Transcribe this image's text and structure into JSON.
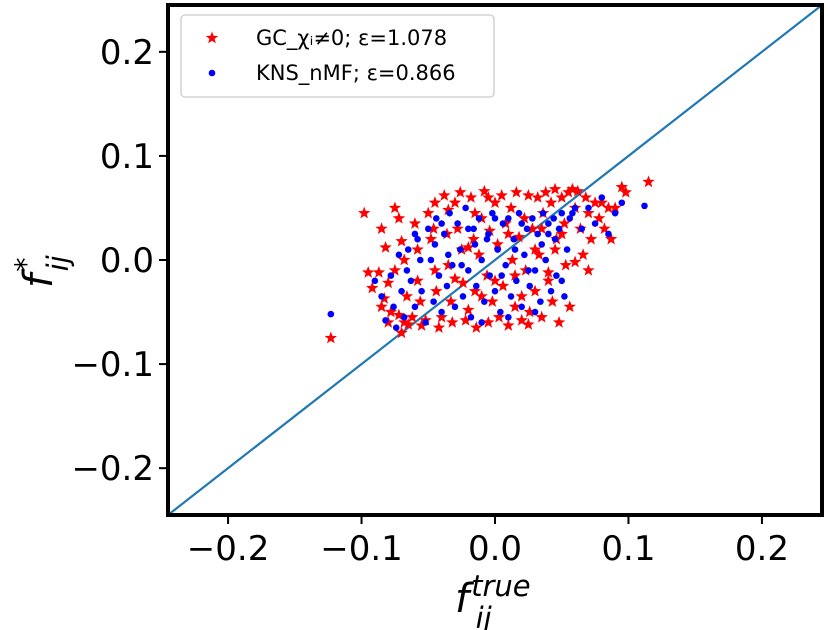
{
  "chart_data": {
    "type": "scatter",
    "xlabel": "f_ij^true",
    "ylabel": "f_ij^*",
    "xlim": [
      -0.245,
      0.245
    ],
    "ylim": [
      -0.245,
      0.245
    ],
    "x_ticks": [
      -0.2,
      -0.1,
      0.0,
      0.1,
      0.2
    ],
    "y_ticks": [
      -0.2,
      -0.1,
      0.0,
      0.1,
      0.2
    ],
    "x_tick_labels": [
      "−0.2",
      "−0.1",
      "0.0",
      "0.1",
      "0.2"
    ],
    "y_tick_labels": [
      "−0.2",
      "−0.1",
      "0.0",
      "0.1",
      "0.2"
    ],
    "reference_line": {
      "description": "y = x",
      "color": "#1f77b4"
    },
    "legend_position": "upper-left",
    "series": [
      {
        "name": "GC_χi≠0;ε=1.078",
        "legend_label": "GC_χᵢ≠0; ε=1.078",
        "marker": "star",
        "color": "#ff0000",
        "points": [
          [
            -0.123,
            -0.075
          ],
          [
            -0.095,
            -0.012
          ],
          [
            -0.092,
            -0.027
          ],
          [
            -0.087,
            -0.012
          ],
          [
            -0.085,
            -0.045
          ],
          [
            -0.083,
            -0.037
          ],
          [
            -0.08,
            -0.06
          ],
          [
            -0.098,
            0.045
          ],
          [
            -0.085,
            0.03
          ],
          [
            -0.082,
            0.012
          ],
          [
            -0.08,
            -0.022
          ],
          [
            -0.078,
            -0.05
          ],
          [
            -0.075,
            -0.01
          ],
          [
            -0.072,
            -0.053
          ],
          [
            -0.07,
            -0.07
          ],
          [
            -0.068,
            -0.06
          ],
          [
            -0.075,
            0.05
          ],
          [
            -0.072,
            0.04
          ],
          [
            -0.07,
            0.018
          ],
          [
            -0.068,
            0.0
          ],
          [
            -0.066,
            -0.035
          ],
          [
            -0.065,
            -0.062
          ],
          [
            -0.062,
            -0.055
          ],
          [
            -0.06,
            0.035
          ],
          [
            -0.058,
            0.01
          ],
          [
            -0.056,
            -0.04
          ],
          [
            -0.055,
            -0.063
          ],
          [
            -0.052,
            -0.058
          ],
          [
            -0.05,
            0.045
          ],
          [
            -0.048,
            0.02
          ],
          [
            -0.046,
            0.03
          ],
          [
            -0.045,
            -0.01
          ],
          [
            -0.044,
            -0.03
          ],
          [
            -0.042,
            -0.065
          ],
          [
            -0.04,
            -0.055
          ],
          [
            -0.038,
            0.062
          ],
          [
            -0.036,
            0.025
          ],
          [
            -0.035,
            -0.005
          ],
          [
            -0.033,
            -0.04
          ],
          [
            -0.032,
            -0.06
          ],
          [
            -0.03,
            0.055
          ],
          [
            -0.028,
            0.03
          ],
          [
            -0.026,
            0.065
          ],
          [
            -0.025,
            0.01
          ],
          [
            -0.024,
            -0.022
          ],
          [
            -0.022,
            -0.058
          ],
          [
            -0.02,
            -0.048
          ],
          [
            -0.018,
            0.06
          ],
          [
            -0.016,
            0.02
          ],
          [
            -0.015,
            -0.03
          ],
          [
            -0.014,
            -0.065
          ],
          [
            -0.012,
            0.005
          ],
          [
            -0.01,
            0.04
          ],
          [
            -0.008,
            0.066
          ],
          [
            -0.006,
            -0.015
          ],
          [
            -0.005,
            -0.06
          ],
          [
            -0.004,
            0.028
          ],
          [
            -0.002,
            -0.04
          ],
          [
            0.0,
            0.055
          ],
          [
            0.002,
            0.015
          ],
          [
            0.003,
            -0.055
          ],
          [
            0.005,
            0.062
          ],
          [
            0.006,
            -0.025
          ],
          [
            0.008,
            0.035
          ],
          [
            0.01,
            -0.063
          ],
          [
            0.012,
            0.05
          ],
          [
            0.013,
            0.0
          ],
          [
            0.015,
            -0.045
          ],
          [
            0.016,
            0.065
          ],
          [
            0.018,
            0.022
          ],
          [
            0.02,
            -0.058
          ],
          [
            0.022,
            0.04
          ],
          [
            0.023,
            -0.01
          ],
          [
            0.025,
            0.062
          ],
          [
            0.026,
            -0.05
          ],
          [
            0.028,
            0.03
          ],
          [
            0.03,
            -0.03
          ],
          [
            0.032,
            0.06
          ],
          [
            0.033,
            0.005
          ],
          [
            0.035,
            -0.055
          ],
          [
            0.036,
            0.045
          ],
          [
            0.038,
            0.065
          ],
          [
            0.04,
            -0.02
          ],
          [
            0.042,
            0.055
          ],
          [
            0.043,
            -0.04
          ],
          [
            0.045,
            0.068
          ],
          [
            0.046,
            0.02
          ],
          [
            0.048,
            -0.06
          ],
          [
            0.05,
            0.06
          ],
          [
            0.052,
            0.035
          ],
          [
            0.053,
            -0.005
          ],
          [
            0.055,
            0.065
          ],
          [
            0.056,
            -0.045
          ],
          [
            0.058,
            0.068
          ],
          [
            0.06,
            0.05
          ],
          [
            0.062,
            0.066
          ],
          [
            0.064,
            0.03
          ],
          [
            0.066,
            0.005
          ],
          [
            0.068,
            0.06
          ],
          [
            0.07,
            0.045
          ],
          [
            0.072,
            0.02
          ],
          [
            0.075,
            0.055
          ],
          [
            0.078,
            0.04
          ],
          [
            0.08,
            0.055
          ],
          [
            0.082,
            0.03
          ],
          [
            0.085,
            0.05
          ],
          [
            0.087,
            0.02
          ],
          [
            0.09,
            0.05
          ],
          [
            0.095,
            0.07
          ],
          [
            0.098,
            0.065
          ],
          [
            0.115,
            0.075
          ],
          [
            -0.035,
            0.048
          ],
          [
            -0.03,
            -0.018
          ],
          [
            -0.02,
            0.012
          ],
          [
            -0.01,
            -0.035
          ],
          [
            0.0,
            -0.02
          ],
          [
            0.01,
            0.025
          ],
          [
            0.02,
            -0.035
          ],
          [
            0.03,
            0.01
          ],
          [
            0.04,
            -0.012
          ],
          [
            0.05,
            0.025
          ],
          [
            -0.045,
            0.055
          ],
          [
            -0.015,
            0.045
          ],
          [
            0.015,
            -0.015
          ],
          [
            0.045,
            0.01
          ],
          [
            0.06,
            -0.002
          ],
          [
            0.07,
            -0.01
          ],
          [
            -0.058,
            -0.02
          ],
          [
            -0.005,
            0.06
          ],
          [
            0.025,
            -0.062
          ],
          [
            0.035,
            0.03
          ]
        ]
      },
      {
        "name": "KNS_nMF;ε=0.866",
        "legend_label": "KNS_nMF; ε=0.866",
        "marker": "circle",
        "color": "#0000ff",
        "points": [
          [
            -0.123,
            -0.052
          ],
          [
            -0.09,
            -0.02
          ],
          [
            -0.085,
            -0.035
          ],
          [
            -0.082,
            -0.058
          ],
          [
            -0.078,
            -0.015
          ],
          [
            -0.076,
            -0.045
          ],
          [
            -0.074,
            -0.065
          ],
          [
            -0.072,
            0.005
          ],
          [
            -0.07,
            -0.03
          ],
          [
            -0.068,
            -0.055
          ],
          [
            -0.065,
            0.01
          ],
          [
            -0.063,
            -0.02
          ],
          [
            -0.06,
            -0.045
          ],
          [
            -0.058,
            0.02
          ],
          [
            -0.055,
            -0.03
          ],
          [
            -0.052,
            -0.06
          ],
          [
            -0.05,
            0.03
          ],
          [
            -0.048,
            0.0
          ],
          [
            -0.046,
            -0.04
          ],
          [
            -0.044,
            0.04
          ],
          [
            -0.042,
            -0.015
          ],
          [
            -0.04,
            -0.05
          ],
          [
            -0.038,
            0.025
          ],
          [
            -0.036,
            -0.025
          ],
          [
            -0.034,
            0.045
          ],
          [
            -0.032,
            -0.005
          ],
          [
            -0.03,
            -0.045
          ],
          [
            -0.028,
            0.035
          ],
          [
            -0.026,
            0.01
          ],
          [
            -0.024,
            -0.035
          ],
          [
            -0.022,
            0.05
          ],
          [
            -0.02,
            -0.01
          ],
          [
            -0.018,
            -0.055
          ],
          [
            -0.016,
            0.03
          ],
          [
            -0.014,
            -0.025
          ],
          [
            -0.012,
            0.04
          ],
          [
            -0.01,
            0.0
          ],
          [
            -0.008,
            -0.04
          ],
          [
            -0.006,
            0.02
          ],
          [
            -0.004,
            -0.015
          ],
          [
            -0.002,
            0.045
          ],
          [
            0.0,
            -0.03
          ],
          [
            0.002,
            0.01
          ],
          [
            0.004,
            -0.05
          ],
          [
            0.006,
            0.035
          ],
          [
            0.008,
            -0.005
          ],
          [
            0.01,
            0.04
          ],
          [
            0.012,
            -0.035
          ],
          [
            0.014,
            0.02
          ],
          [
            0.016,
            -0.02
          ],
          [
            0.018,
            0.045
          ],
          [
            0.02,
            -0.045
          ],
          [
            0.022,
            0.005
          ],
          [
            0.024,
            0.03
          ],
          [
            0.026,
            -0.025
          ],
          [
            0.028,
            0.04
          ],
          [
            0.03,
            -0.01
          ],
          [
            0.032,
            0.025
          ],
          [
            0.034,
            -0.04
          ],
          [
            0.036,
            0.045
          ],
          [
            0.038,
            0.0
          ],
          [
            0.04,
            0.035
          ],
          [
            0.042,
            -0.03
          ],
          [
            0.044,
            0.04
          ],
          [
            0.046,
            -0.015
          ],
          [
            0.048,
            0.03
          ],
          [
            0.05,
            0.045
          ],
          [
            0.052,
            -0.035
          ],
          [
            0.054,
            0.01
          ],
          [
            0.056,
            0.04
          ],
          [
            0.058,
            0.045
          ],
          [
            0.06,
            0.05
          ],
          [
            0.065,
            0.03
          ],
          [
            0.07,
            0.05
          ],
          [
            0.075,
            0.035
          ],
          [
            0.08,
            0.06
          ],
          [
            0.085,
            0.025
          ],
          [
            0.09,
            0.045
          ],
          [
            0.095,
            0.055
          ],
          [
            0.112,
            0.052
          ],
          [
            -0.045,
            0.015
          ],
          [
            -0.035,
            0.005
          ],
          [
            -0.025,
            -0.005
          ],
          [
            -0.015,
            0.015
          ],
          [
            -0.005,
            0.025
          ],
          [
            0.005,
            -0.015
          ],
          [
            0.015,
            0.01
          ],
          [
            0.025,
            -0.01
          ],
          [
            0.035,
            0.015
          ],
          [
            0.045,
            0.02
          ],
          [
            -0.06,
            0.025
          ],
          [
            -0.04,
            0.035
          ],
          [
            -0.02,
            0.03
          ],
          [
            0.0,
            0.04
          ],
          [
            0.02,
            0.035
          ],
          [
            0.04,
            0.025
          ],
          [
            -0.066,
            -0.01
          ],
          [
            -0.056,
            0.0
          ],
          [
            0.01,
            -0.055
          ],
          [
            0.03,
            -0.05
          ],
          [
            -0.01,
            -0.06
          ],
          [
            0.05,
            -0.02
          ]
        ]
      }
    ]
  }
}
